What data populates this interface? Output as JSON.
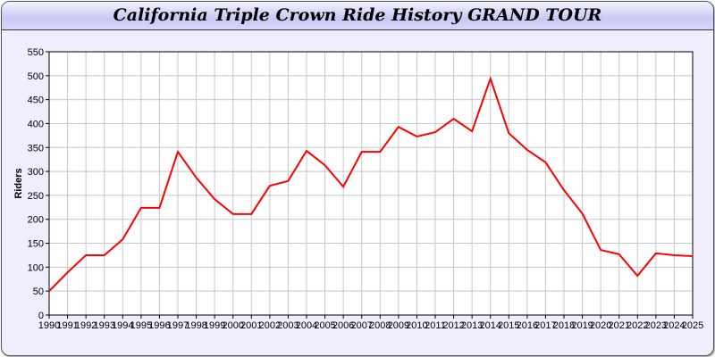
{
  "chart_data": {
    "type": "line",
    "title": "California Triple Crown Ride History GRAND TOUR",
    "xlabel": "",
    "ylabel": "Riders",
    "ylim": [
      0,
      550
    ],
    "yticks": [
      0,
      50,
      100,
      150,
      200,
      250,
      300,
      350,
      400,
      450,
      500,
      550
    ],
    "grid": true,
    "line_color": "#ff0000",
    "x": [
      1990,
      1991,
      1992,
      1993,
      1994,
      1995,
      1996,
      1997,
      1998,
      1999,
      2000,
      2001,
      2002,
      2003,
      2004,
      2005,
      2006,
      2007,
      2008,
      2009,
      2010,
      2011,
      2012,
      2013,
      2014,
      2015,
      2016,
      2017,
      2018,
      2019,
      2020,
      2021,
      2022,
      2023,
      2024,
      2025
    ],
    "series": [
      {
        "values": [
          50,
          89,
          125,
          125,
          158,
          224,
          224,
          341,
          287,
          242,
          211,
          211,
          270,
          280,
          343,
          313,
          268,
          341,
          341,
          393,
          373,
          382,
          410,
          384,
          494,
          380,
          345,
          319,
          261,
          212,
          136,
          127,
          82,
          129,
          125,
          123
        ]
      }
    ]
  }
}
